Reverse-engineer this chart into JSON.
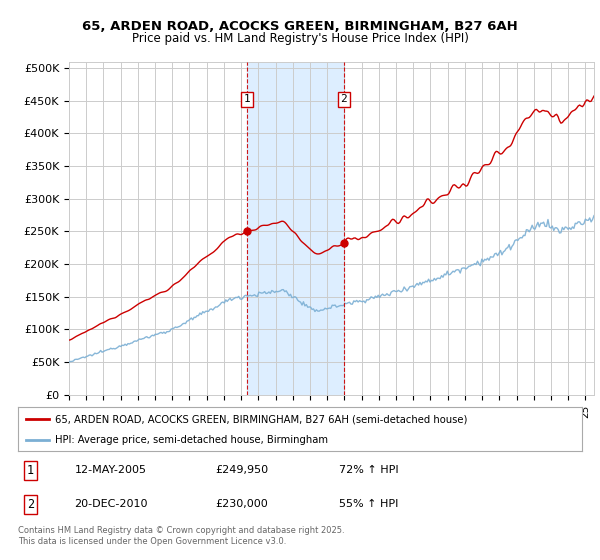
{
  "title_line1": "65, ARDEN ROAD, ACOCKS GREEN, BIRMINGHAM, B27 6AH",
  "title_line2": "Price paid vs. HM Land Registry's House Price Index (HPI)",
  "ylabel_ticks": [
    "£0",
    "£50K",
    "£100K",
    "£150K",
    "£200K",
    "£250K",
    "£300K",
    "£350K",
    "£400K",
    "£450K",
    "£500K"
  ],
  "ytick_values": [
    0,
    50000,
    100000,
    150000,
    200000,
    250000,
    300000,
    350000,
    400000,
    450000,
    500000
  ],
  "ylim": [
    0,
    510000
  ],
  "xlim_start": 1995.0,
  "xlim_end": 2025.5,
  "red_line_color": "#cc0000",
  "blue_line_color": "#7bafd4",
  "marker1_date": 2005.36,
  "marker2_date": 2010.97,
  "marker1_price": 249950,
  "marker2_price": 230000,
  "shade_color": "#ddeeff",
  "vline_color": "#cc0000",
  "legend_label_red": "65, ARDEN ROAD, ACOCKS GREEN, BIRMINGHAM, B27 6AH (semi-detached house)",
  "legend_label_blue": "HPI: Average price, semi-detached house, Birmingham",
  "table_row1": [
    "1",
    "12-MAY-2005",
    "£249,950",
    "72% ↑ HPI"
  ],
  "table_row2": [
    "2",
    "20-DEC-2010",
    "£230,000",
    "55% ↑ HPI"
  ],
  "footer": "Contains HM Land Registry data © Crown copyright and database right 2025.\nThis data is licensed under the Open Government Licence v3.0.",
  "background_color": "#ffffff",
  "grid_color": "#cccccc",
  "title_fontsize": 9.5,
  "subtitle_fontsize": 8.5
}
